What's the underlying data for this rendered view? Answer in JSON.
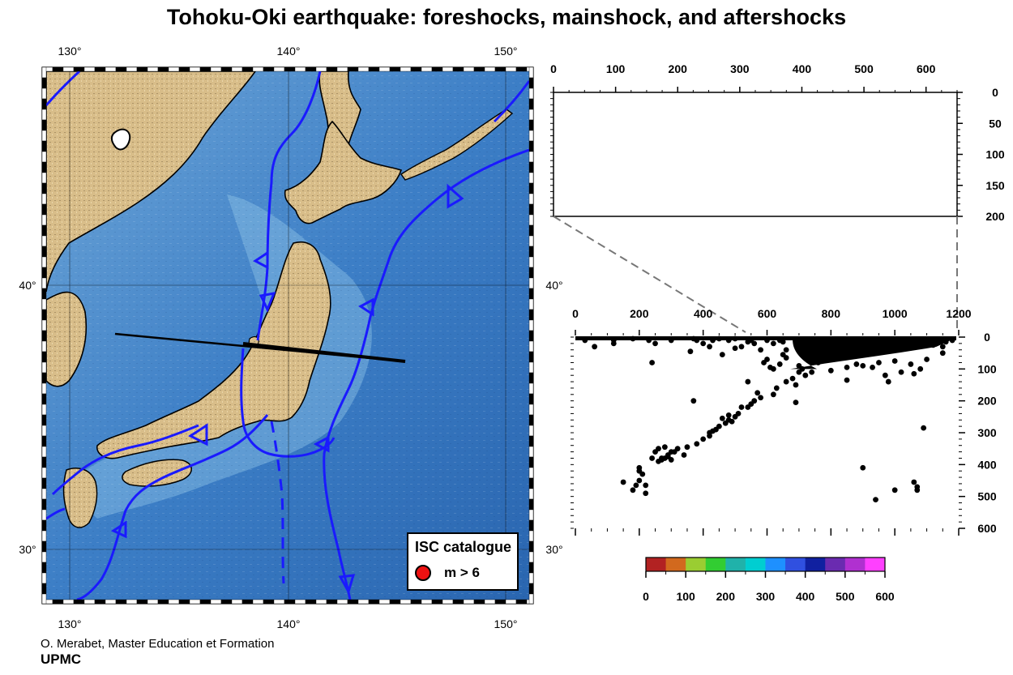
{
  "title": "Tohoku-Oki earthquake: foreshocks, mainshock, and aftershocks",
  "map": {
    "lon_range": [
      129,
      151
    ],
    "lat_range": [
      28,
      48
    ],
    "lon_ticks": [
      "130°",
      "140°",
      "150°"
    ],
    "lat_ticks": [
      "30°",
      "40°"
    ],
    "colors": {
      "land": "#d9be8c",
      "ocean": "#3f82c9",
      "deep_ocean": "#2a6ab8",
      "shelf": "#a9d4ec",
      "plate_boundary": "#1a1aff",
      "profile_line": "#000000"
    },
    "legend": {
      "title": "ISC catalogue",
      "marker_label": "m > 6",
      "marker_color": "#ee1111"
    },
    "profile": {
      "start": [
        132,
        38
      ],
      "end": [
        145.3,
        37.2
      ]
    }
  },
  "top_section": {
    "x_ticks": [
      "0",
      "100",
      "200",
      "300",
      "400",
      "500",
      "600"
    ],
    "y_ticks": [
      "0",
      "50",
      "100",
      "150",
      "200"
    ],
    "x_range": [
      0,
      650
    ],
    "y_range": [
      0,
      200
    ]
  },
  "chart_data": {
    "type": "scatter",
    "title": "",
    "xlabel": "",
    "ylabel": "",
    "x_ticks": [
      "0",
      "200",
      "400",
      "600",
      "800",
      "1000",
      "1200"
    ],
    "y_ticks": [
      "0",
      "100",
      "200",
      "300",
      "400",
      "500",
      "600"
    ],
    "xlim": [
      0,
      1200
    ],
    "ylim": [
      0,
      600
    ],
    "y_inverted": true,
    "marker_color": "#000000",
    "points": [
      [
        30,
        10
      ],
      [
        60,
        30
      ],
      [
        120,
        10
      ],
      [
        180,
        5
      ],
      [
        230,
        10
      ],
      [
        250,
        20
      ],
      [
        300,
        10
      ],
      [
        370,
        5
      ],
      [
        380,
        10
      ],
      [
        400,
        20
      ],
      [
        430,
        10
      ],
      [
        450,
        5
      ],
      [
        480,
        10
      ],
      [
        500,
        5
      ],
      [
        520,
        30
      ],
      [
        550,
        10
      ],
      [
        560,
        20
      ],
      [
        580,
        40
      ],
      [
        600,
        10
      ],
      [
        620,
        20
      ],
      [
        640,
        10
      ],
      [
        660,
        40
      ],
      [
        660,
        65
      ],
      [
        650,
        55
      ],
      [
        640,
        85
      ],
      [
        620,
        100
      ],
      [
        600,
        70
      ],
      [
        700,
        90
      ],
      [
        720,
        120
      ],
      [
        690,
        150
      ],
      [
        700,
        40
      ],
      [
        650,
        15
      ],
      [
        700,
        20
      ],
      [
        750,
        10
      ],
      [
        240,
        80
      ],
      [
        120,
        20
      ],
      [
        360,
        45
      ],
      [
        420,
        30
      ],
      [
        460,
        55
      ],
      [
        500,
        35
      ],
      [
        540,
        15
      ],
      [
        590,
        80
      ],
      [
        610,
        95
      ],
      [
        540,
        140
      ],
      [
        570,
        175
      ],
      [
        550,
        210
      ],
      [
        520,
        220
      ],
      [
        480,
        245
      ],
      [
        460,
        255
      ],
      [
        440,
        290
      ],
      [
        420,
        310
      ],
      [
        400,
        320
      ],
      [
        380,
        335
      ],
      [
        350,
        345
      ],
      [
        340,
        370
      ],
      [
        370,
        200
      ],
      [
        280,
        345
      ],
      [
        260,
        350
      ],
      [
        250,
        360
      ],
      [
        240,
        380
      ],
      [
        260,
        390
      ],
      [
        270,
        380
      ],
      [
        300,
        360
      ],
      [
        300,
        385
      ],
      [
        290,
        370
      ],
      [
        310,
        360
      ],
      [
        320,
        350
      ],
      [
        270,
        385
      ],
      [
        280,
        380
      ],
      [
        290,
        375
      ],
      [
        200,
        410
      ],
      [
        200,
        420
      ],
      [
        210,
        430
      ],
      [
        200,
        450
      ],
      [
        190,
        465
      ],
      [
        150,
        455
      ],
      [
        180,
        480
      ],
      [
        220,
        465
      ],
      [
        220,
        490
      ],
      [
        470,
        270
      ],
      [
        480,
        260
      ],
      [
        500,
        250
      ],
      [
        420,
        300
      ],
      [
        430,
        295
      ],
      [
        450,
        280
      ],
      [
        490,
        265
      ],
      [
        510,
        240
      ],
      [
        540,
        220
      ],
      [
        560,
        200
      ],
      [
        580,
        190
      ],
      [
        620,
        180
      ],
      [
        630,
        160
      ],
      [
        660,
        140
      ],
      [
        680,
        130
      ],
      [
        700,
        110
      ],
      [
        710,
        100
      ],
      [
        800,
        105
      ],
      [
        850,
        95
      ],
      [
        900,
        90
      ],
      [
        950,
        80
      ],
      [
        1000,
        75
      ],
      [
        1050,
        85
      ],
      [
        1100,
        70
      ],
      [
        1150,
        50
      ],
      [
        1080,
        100
      ],
      [
        1020,
        110
      ],
      [
        970,
        120
      ],
      [
        930,
        95
      ],
      [
        880,
        85
      ],
      [
        760,
        80
      ],
      [
        740,
        110
      ],
      [
        850,
        135
      ],
      [
        980,
        140
      ],
      [
        1060,
        115
      ],
      [
        690,
        205
      ],
      [
        1090,
        285
      ],
      [
        1000,
        480
      ],
      [
        1070,
        480
      ],
      [
        1070,
        470
      ],
      [
        1060,
        455
      ],
      [
        900,
        410
      ],
      [
        940,
        510
      ],
      [
        1180,
        10
      ],
      [
        1150,
        30
      ],
      [
        1120,
        25
      ],
      [
        1100,
        20
      ],
      [
        1160,
        15
      ]
    ],
    "dense_cluster": {
      "x_range": [
        680,
        1180
      ],
      "y_range": [
        0,
        100
      ]
    }
  },
  "colorbar": {
    "ticks": [
      "0",
      "100",
      "200",
      "300",
      "400",
      "500",
      "600"
    ],
    "colors": [
      "#b22222",
      "#d2691e",
      "#9acd32",
      "#32cd32",
      "#20b2aa",
      "#00ced1",
      "#1e90ff",
      "#3050e0",
      "#1020a0",
      "#6a2bb0",
      "#b030d0",
      "#ff40ff"
    ]
  },
  "credits": {
    "line1": "O. Merabet, Master Education et Formation",
    "line2": "UPMC"
  }
}
